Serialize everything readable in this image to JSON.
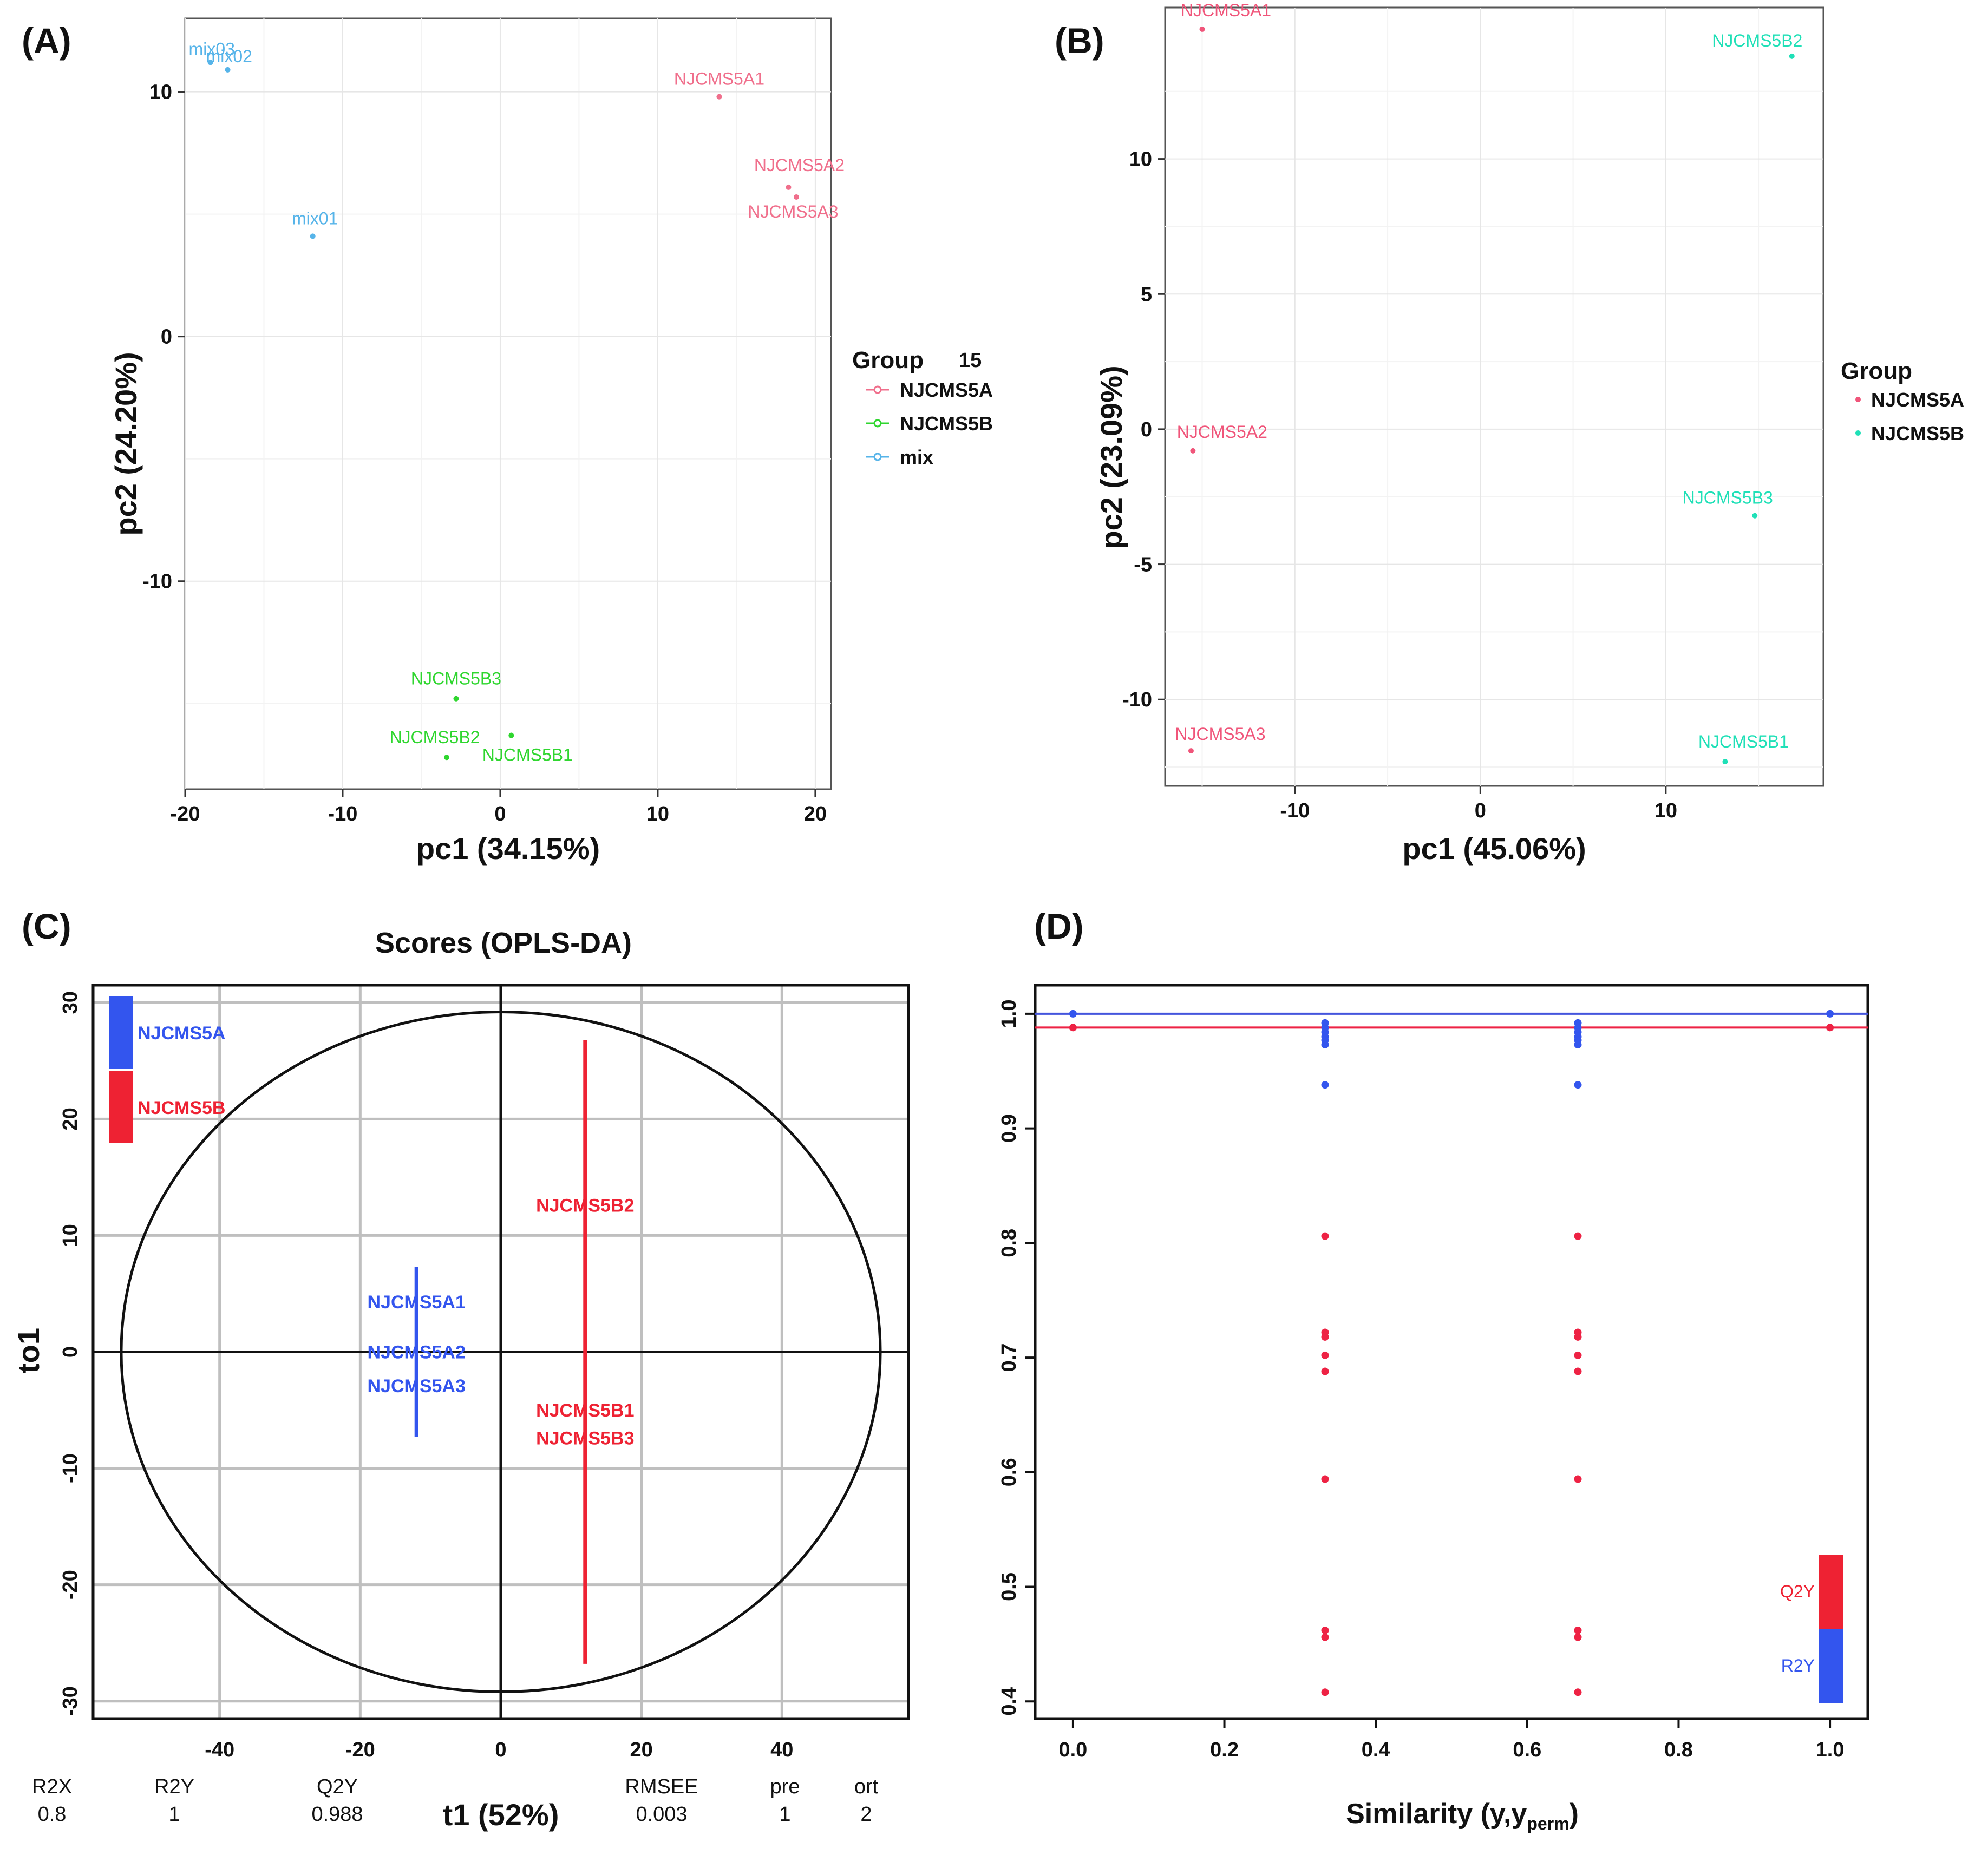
{
  "chart_data": [
    {
      "panel": "(A)",
      "type": "scatter",
      "title": "",
      "xlabel": "pc1 (34.15%)",
      "ylabel": "pc2 (24.20%)",
      "xlim": [
        -20,
        21
      ],
      "ylim": [
        -18.5,
        13
      ],
      "xticks": [
        -20,
        -10,
        0,
        10,
        20
      ],
      "yticks": [
        -10,
        0,
        10
      ],
      "grid": true,
      "legend_title": "Group",
      "legend_position": "right",
      "annotation": "15",
      "series": [
        {
          "name": "NJCMS5A",
          "color": "#f06f8c",
          "points": [
            {
              "label": "NJCMS5A1",
              "x": 13.9,
              "y": 9.8
            },
            {
              "label": "NJCMS5A2",
              "x": 18.3,
              "y": 6.1
            },
            {
              "label": "NJCMS5A3",
              "x": 18.8,
              "y": 5.7
            }
          ]
        },
        {
          "name": "NJCMS5B",
          "color": "#2fd62f",
          "points": [
            {
              "label": "NJCMS5B3",
              "x": -2.8,
              "y": -14.8
            },
            {
              "label": "NJCMS5B2",
              "x": -3.4,
              "y": -17.2
            },
            {
              "label": "NJCMS5B1",
              "x": 0.7,
              "y": -16.3
            }
          ]
        },
        {
          "name": "mix",
          "color": "#56b4e9",
          "points": [
            {
              "label": "mix03",
              "x": -18.4,
              "y": 11.2
            },
            {
              "label": "mix02",
              "x": -17.3,
              "y": 10.9
            },
            {
              "label": "mix01",
              "x": -11.9,
              "y": 4.1
            }
          ]
        }
      ]
    },
    {
      "panel": "(B)",
      "type": "scatter",
      "title": "",
      "xlabel": "pc1 (45.06%)",
      "ylabel": "pc2 (23.09%)",
      "xlim": [
        -17,
        18.5
      ],
      "ylim": [
        -13.2,
        15.6
      ],
      "xticks": [
        -10,
        0,
        10
      ],
      "yticks": [
        -10,
        -5,
        0,
        5,
        10
      ],
      "grid": true,
      "legend_title": "Group",
      "legend_position": "right",
      "series": [
        {
          "name": "NJCMS5A",
          "color": "#f0557a",
          "points": [
            {
              "label": "NJCMS5A1",
              "x": -15.0,
              "y": 14.8
            },
            {
              "label": "NJCMS5A2",
              "x": -15.5,
              "y": -0.8
            },
            {
              "label": "NJCMS5A3",
              "x": -15.6,
              "y": -11.9
            }
          ]
        },
        {
          "name": "NJCMS5B",
          "color": "#1fe0b7",
          "points": [
            {
              "label": "NJCMS5B2",
              "x": 16.8,
              "y": 13.8
            },
            {
              "label": "NJCMS5B3",
              "x": 14.8,
              "y": -3.2
            },
            {
              "label": "NJCMS5B1",
              "x": 13.2,
              "y": -12.3
            }
          ]
        }
      ]
    },
    {
      "panel": "(C)",
      "type": "scatter",
      "title": "Scores (OPLS-DA)",
      "xlabel": "t1 (52%)",
      "ylabel": "to1",
      "xlim": [
        -58,
        58
      ],
      "ylim": [
        -31.5,
        31.5
      ],
      "xticks": [
        -40,
        -20,
        0,
        20,
        40
      ],
      "yticks": [
        -30,
        -20,
        -10,
        0,
        10,
        20,
        30
      ],
      "grid": true,
      "ellipse": {
        "rx": 54,
        "ry": 29.2
      },
      "legend": [
        {
          "name": "NJCMS5A",
          "color": "#3355ee"
        },
        {
          "name": "NJCMS5B",
          "color": "#ee2233"
        }
      ],
      "series": [
        {
          "name": "NJCMS5A",
          "color": "#3355ee",
          "segment": {
            "x": -12,
            "y1": -7.3,
            "y2": 7.3
          },
          "points": [
            {
              "label": "NJCMS5A1",
              "x": -12,
              "y": 4.3
            },
            {
              "label": "NJCMS5A2",
              "x": -12,
              "y": 0
            },
            {
              "label": "NJCMS5A3",
              "x": -12,
              "y": -2.9
            }
          ]
        },
        {
          "name": "NJCMS5B",
          "color": "#ee2233",
          "segment": {
            "x": 12,
            "y1": -26.8,
            "y2": 26.8
          },
          "points": [
            {
              "label": "NJCMS5B2",
              "x": 12,
              "y": 12.6
            },
            {
              "label": "NJCMS5B1",
              "x": 12,
              "y": -5.0
            },
            {
              "label": "NJCMS5B3",
              "x": 12,
              "y": -7.4
            }
          ]
        }
      ],
      "stats": {
        "headers": [
          "R2X",
          "R2Y",
          "Q2Y",
          "RMSEE",
          "pre",
          "ort"
        ],
        "values": [
          "0.8",
          "1",
          "0.988",
          "0.003",
          "1",
          "2"
        ]
      }
    },
    {
      "panel": "(D)",
      "type": "scatter",
      "title": "",
      "xlabel_main": "Similarity (y,y",
      "xlabel_sub": "perm",
      "xlabel_end": ")",
      "ylabel": "",
      "xlim": [
        -0.05,
        1.05
      ],
      "ylim": [
        0.385,
        1.025
      ],
      "xticks": [
        "0.0",
        "0.2",
        "0.4",
        "0.6",
        "0.8",
        "1.0"
      ],
      "yticks": [
        "0.4",
        "0.5",
        "0.6",
        "0.7",
        "0.8",
        "0.9",
        "1.0"
      ],
      "hlines": [
        {
          "name": "R2Y",
          "y": 1.0,
          "color": "#4455dd"
        },
        {
          "name": "Q2Y",
          "y": 0.988,
          "color": "#ee2244"
        }
      ],
      "legend": [
        {
          "name": "Q2Y",
          "color": "#ee2233"
        },
        {
          "name": "R2Y",
          "color": "#3355ee"
        }
      ],
      "series": [
        {
          "name": "R2Y",
          "color": "#3355ee",
          "x": [
            0,
            0.333,
            0.333,
            0.333,
            0.333,
            0.333,
            0.333,
            0.333,
            0.667,
            0.667,
            0.667,
            0.667,
            0.667,
            0.667,
            0.667,
            1.0
          ],
          "y": [
            1.0,
            0.992,
            0.988,
            0.984,
            0.98,
            0.977,
            0.973,
            0.938,
            0.992,
            0.988,
            0.984,
            0.98,
            0.977,
            0.973,
            0.938,
            1.0
          ]
        },
        {
          "name": "Q2Y",
          "color": "#ee2244",
          "x": [
            0,
            0.333,
            0.333,
            0.333,
            0.333,
            0.333,
            0.333,
            0.333,
            0.333,
            0.333,
            0.667,
            0.667,
            0.667,
            0.667,
            0.667,
            0.667,
            0.667,
            0.667,
            0.667,
            1.0
          ],
          "y": [
            0.988,
            0.806,
            0.722,
            0.718,
            0.702,
            0.688,
            0.594,
            0.462,
            0.456,
            0.408,
            0.806,
            0.722,
            0.718,
            0.702,
            0.688,
            0.594,
            0.462,
            0.456,
            0.408,
            0.988
          ]
        }
      ]
    }
  ]
}
